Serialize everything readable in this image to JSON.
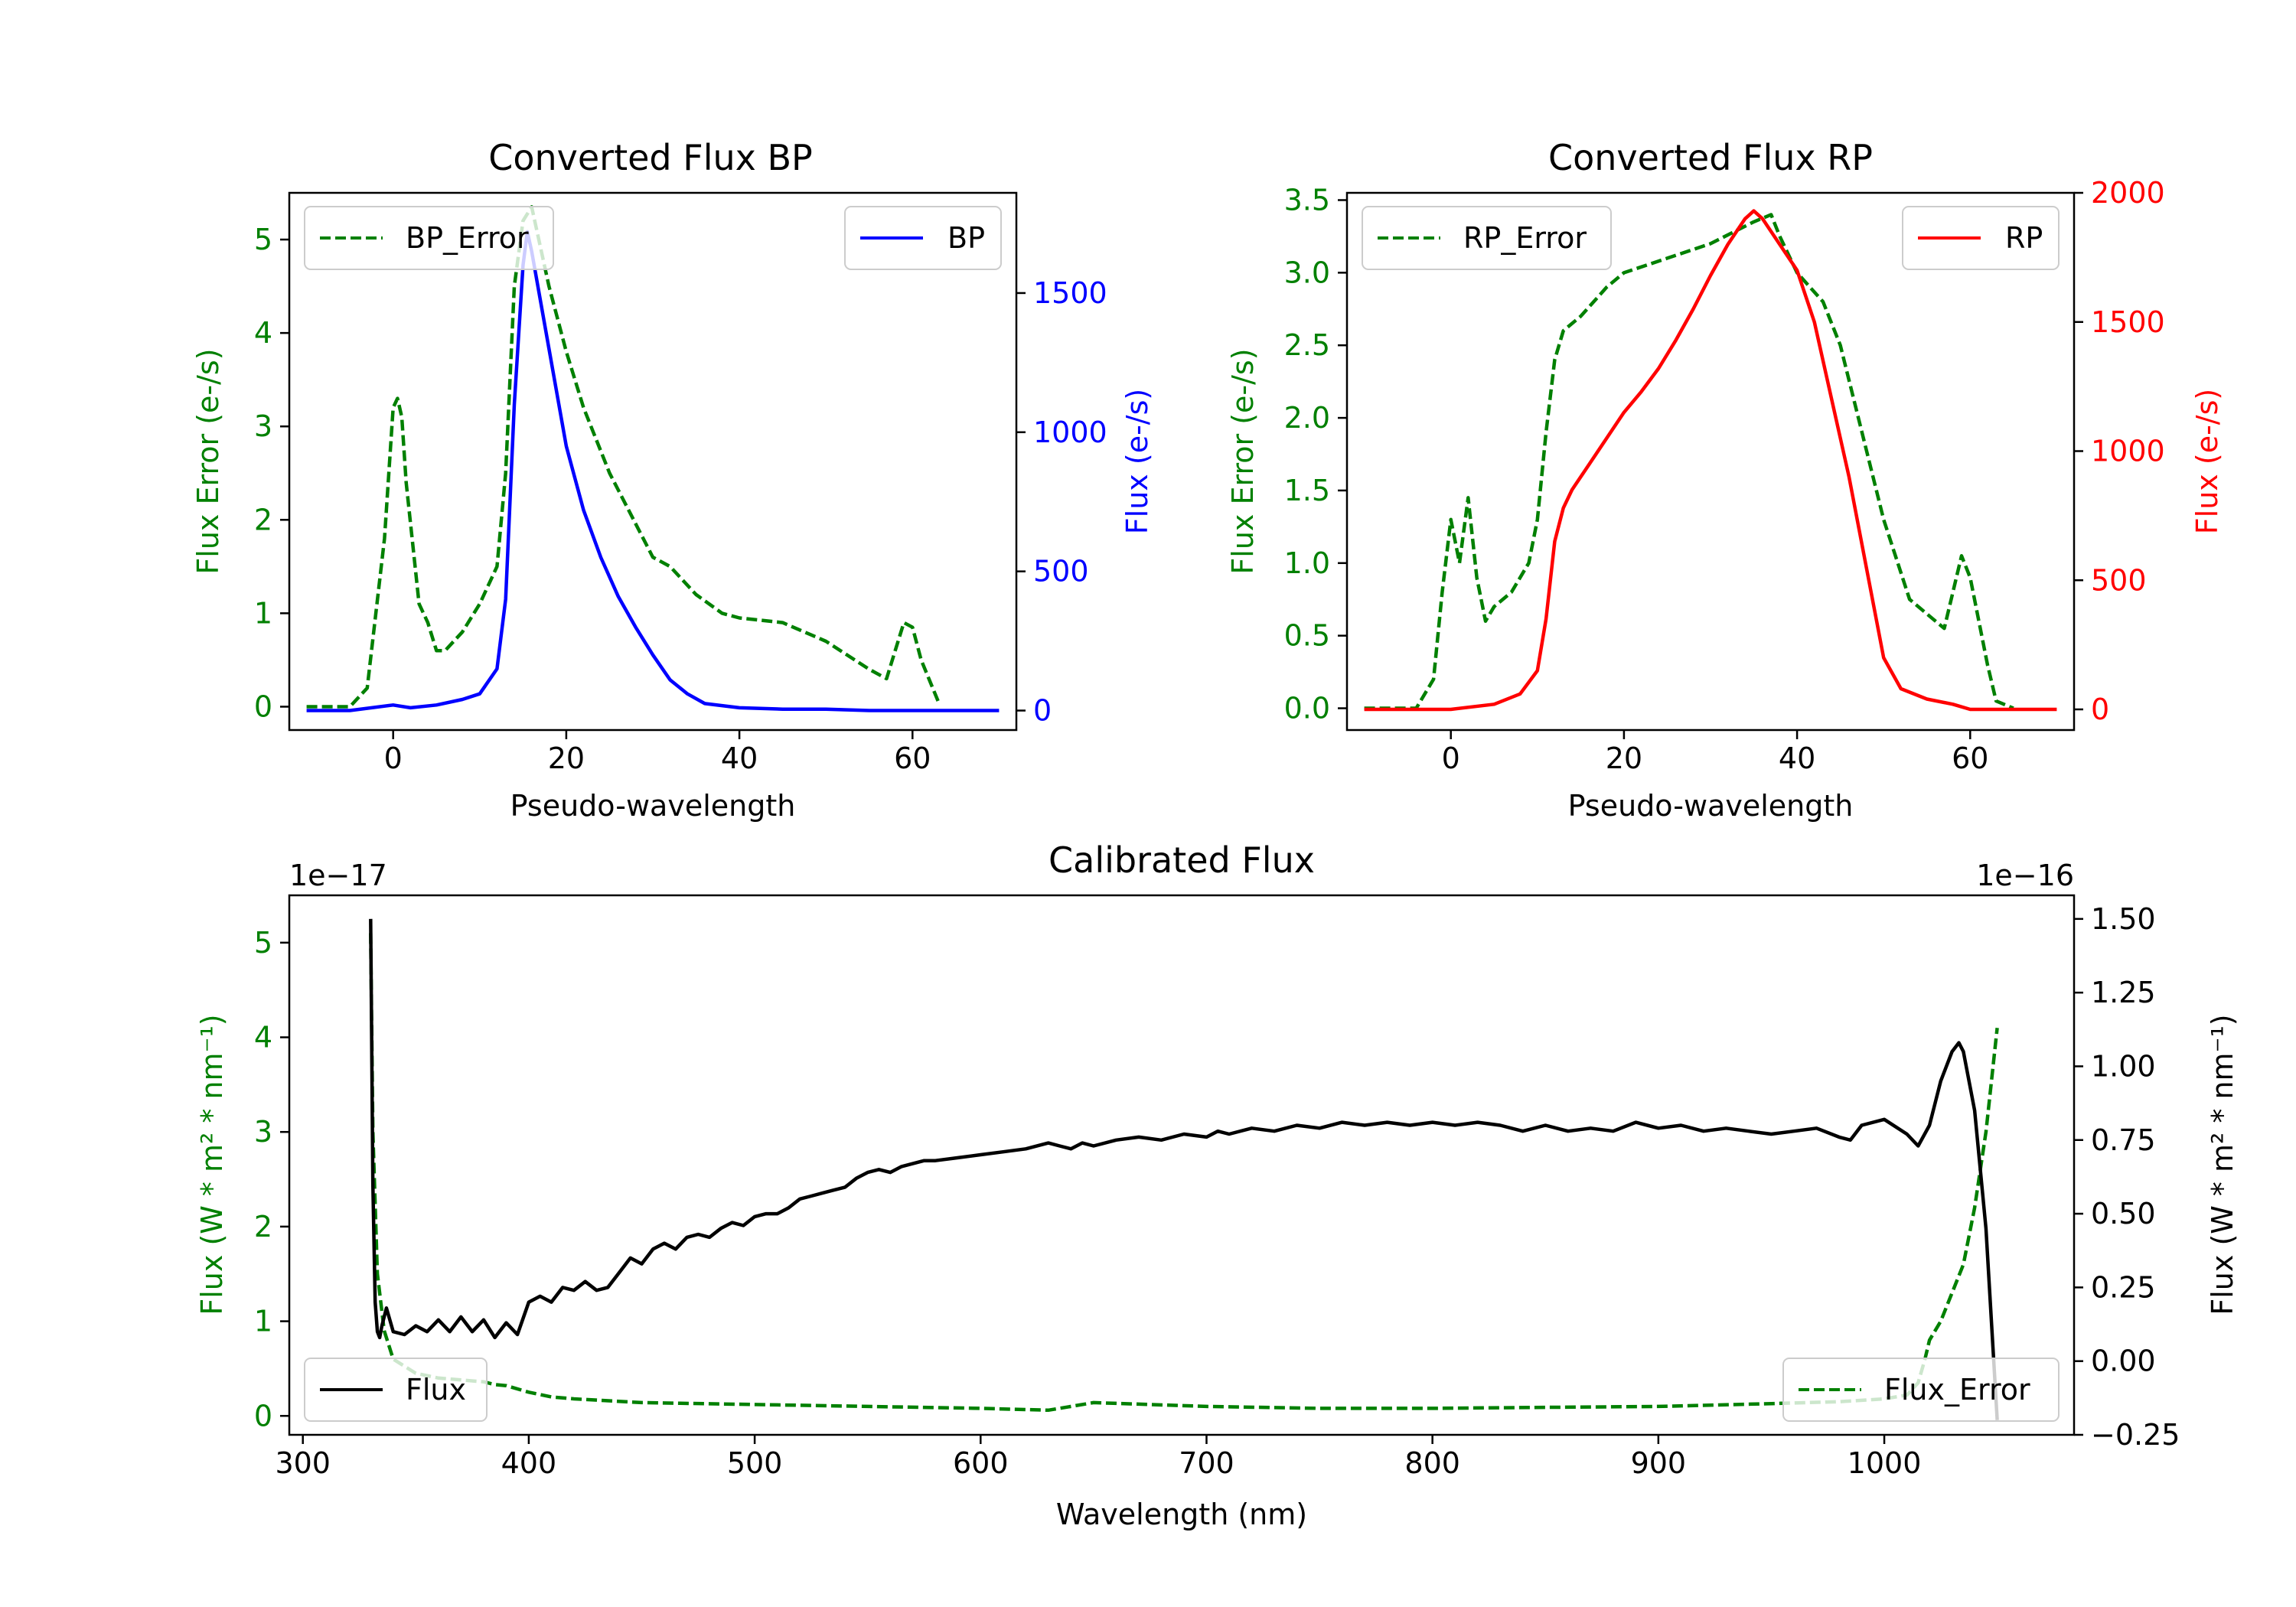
{
  "chart_data": [
    {
      "id": "bp",
      "type": "line",
      "title": "Converted Flux BP",
      "xlabel": "Pseudo-wavelength",
      "ylabel_left": "Flux Error (e-/s)",
      "ylabel_right": "Flux (e-/s)",
      "xlim": [
        -12,
        72
      ],
      "ylim_left": [
        -0.25,
        5.5
      ],
      "ylim_right": [
        -70,
        1860
      ],
      "xticks": [
        0,
        20,
        40,
        60
      ],
      "yticks_left": [
        0,
        1,
        2,
        3,
        4,
        5
      ],
      "yticks_right": [
        0,
        500,
        1000,
        1500
      ],
      "legend_left": "top-left",
      "legend_right": "top-right",
      "series": [
        {
          "name": "BP_Error",
          "axis": "left",
          "color": "#008000",
          "style": "dashed",
          "x": [
            -10,
            -5,
            -3,
            -1,
            0,
            0.5,
            1,
            1.5,
            3,
            4,
            5,
            6,
            8,
            10,
            12,
            13,
            14,
            15,
            16,
            18,
            20,
            22,
            25,
            30,
            32,
            35,
            38,
            40,
            45,
            50,
            55,
            57,
            58,
            59,
            60,
            61,
            63
          ],
          "y": [
            0,
            0,
            0.2,
            1.8,
            3.2,
            3.3,
            3.1,
            2.4,
            1.1,
            0.9,
            0.6,
            0.6,
            0.8,
            1.1,
            1.5,
            2.5,
            4.5,
            5.2,
            5.35,
            4.5,
            3.8,
            3.2,
            2.5,
            1.6,
            1.5,
            1.2,
            1.0,
            0.95,
            0.9,
            0.7,
            0.4,
            0.3,
            0.6,
            0.9,
            0.85,
            0.5,
            0.05
          ]
        },
        {
          "name": "BP",
          "axis": "right",
          "color": "#0000ff",
          "style": "solid",
          "x": [
            -10,
            -5,
            0,
            2,
            5,
            8,
            10,
            12,
            13,
            14,
            15,
            15.5,
            16,
            18,
            20,
            22,
            24,
            26,
            28,
            30,
            32,
            34,
            36,
            40,
            45,
            50,
            55,
            60,
            65,
            70
          ],
          "y": [
            0,
            0,
            20,
            10,
            20,
            40,
            60,
            150,
            400,
            1100,
            1600,
            1720,
            1650,
            1300,
            950,
            720,
            550,
            410,
            300,
            200,
            110,
            60,
            25,
            10,
            5,
            5,
            0,
            0,
            0,
            0
          ]
        }
      ]
    },
    {
      "id": "rp",
      "type": "line",
      "title": "Converted Flux RP",
      "xlabel": "Pseudo-wavelength",
      "ylabel_left": "Flux Error (e-/s)",
      "ylabel_right": "Flux (e-/s)",
      "xlim": [
        -12,
        72
      ],
      "ylim_left": [
        -0.15,
        3.55
      ],
      "ylim_right": [
        -80,
        2000
      ],
      "xticks": [
        0,
        20,
        40,
        60
      ],
      "yticks_left": [
        0.0,
        0.5,
        1.0,
        1.5,
        2.0,
        2.5,
        3.0,
        3.5
      ],
      "yticks_right": [
        0,
        500,
        1000,
        1500,
        2000
      ],
      "legend_left": "top-left",
      "legend_right": "top-right",
      "series": [
        {
          "name": "RP_Error",
          "axis": "left",
          "color": "#008000",
          "style": "dashed",
          "x": [
            -10,
            -4,
            -2,
            -1,
            0,
            1,
            2,
            3,
            4,
            5,
            7,
            9,
            10,
            11,
            12,
            13,
            15,
            18,
            20,
            25,
            30,
            35,
            37,
            38,
            40,
            43,
            45,
            50,
            53,
            56,
            57,
            58,
            59,
            60,
            62,
            63,
            65
          ],
          "y": [
            0,
            0,
            0.2,
            0.8,
            1.3,
            1.0,
            1.45,
            0.9,
            0.6,
            0.7,
            0.8,
            1.0,
            1.3,
            1.9,
            2.4,
            2.6,
            2.7,
            2.9,
            3.0,
            3.1,
            3.2,
            3.35,
            3.4,
            3.25,
            3.0,
            2.8,
            2.5,
            1.3,
            0.75,
            0.6,
            0.55,
            0.8,
            1.05,
            0.9,
            0.3,
            0.05,
            0
          ]
        },
        {
          "name": "RP",
          "axis": "right",
          "color": "#ff0000",
          "style": "solid",
          "x": [
            -10,
            0,
            5,
            8,
            10,
            11,
            12,
            13,
            14,
            16,
            18,
            20,
            22,
            24,
            26,
            28,
            30,
            32,
            34,
            35,
            36,
            38,
            40,
            42,
            44,
            46,
            48,
            50,
            52,
            55,
            58,
            60,
            65,
            70
          ],
          "y": [
            0,
            0,
            20,
            60,
            150,
            350,
            650,
            780,
            850,
            950,
            1050,
            1150,
            1230,
            1320,
            1430,
            1550,
            1680,
            1800,
            1900,
            1930,
            1900,
            1800,
            1700,
            1500,
            1200,
            900,
            550,
            200,
            80,
            40,
            20,
            0,
            0,
            0
          ]
        }
      ]
    },
    {
      "id": "cal",
      "type": "line",
      "title": "Calibrated Flux",
      "xlabel": "Wavelength (nm)",
      "ylabel_left": "Flux (W * m² * nm⁻¹)",
      "ylabel_right": "Flux (W * m² * nm⁻¹)",
      "offset_left": "1e−17",
      "offset_right": "1e−16",
      "xlim": [
        294,
        1084
      ],
      "ylim_left": [
        -0.2,
        5.5
      ],
      "ylim_right": [
        -0.25,
        1.58
      ],
      "xticks": [
        300,
        400,
        500,
        600,
        700,
        800,
        900,
        1000
      ],
      "yticks_left": [
        0,
        1,
        2,
        3,
        4,
        5
      ],
      "yticks_right": [
        -0.25,
        0.0,
        0.25,
        0.5,
        0.75,
        1.0,
        1.25,
        1.5
      ],
      "yticklabels_right": [
        "−0.25",
        "0.00",
        "0.25",
        "0.50",
        "0.75",
        "1.00",
        "1.25",
        "1.50"
      ],
      "legend_left": "bottom-left",
      "legend_right": "bottom-right",
      "series": [
        {
          "name": "Flux",
          "axis": "right",
          "color": "#000000",
          "style": "solid",
          "x": [
            330,
            331,
            332,
            333,
            334,
            335,
            337,
            340,
            345,
            350,
            355,
            360,
            365,
            370,
            375,
            380,
            385,
            390,
            395,
            400,
            405,
            410,
            415,
            420,
            425,
            430,
            435,
            440,
            445,
            450,
            455,
            460,
            465,
            470,
            475,
            480,
            485,
            490,
            495,
            500,
            505,
            510,
            515,
            520,
            525,
            530,
            535,
            540,
            545,
            550,
            555,
            560,
            565,
            570,
            575,
            580,
            590,
            600,
            610,
            620,
            630,
            635,
            640,
            645,
            650,
            660,
            670,
            680,
            690,
            700,
            705,
            710,
            720,
            730,
            740,
            750,
            760,
            770,
            780,
            790,
            800,
            810,
            820,
            830,
            840,
            850,
            860,
            870,
            880,
            890,
            900,
            910,
            920,
            930,
            940,
            950,
            960,
            970,
            980,
            985,
            990,
            1000,
            1010,
            1015,
            1020,
            1025,
            1030,
            1033,
            1035,
            1040,
            1045,
            1050
          ],
          "y": [
            1.5,
            0.6,
            0.2,
            0.1,
            0.08,
            0.12,
            0.18,
            0.1,
            0.09,
            0.12,
            0.1,
            0.14,
            0.1,
            0.15,
            0.1,
            0.14,
            0.08,
            0.13,
            0.09,
            0.2,
            0.22,
            0.2,
            0.25,
            0.24,
            0.27,
            0.24,
            0.25,
            0.3,
            0.35,
            0.33,
            0.38,
            0.4,
            0.38,
            0.42,
            0.43,
            0.42,
            0.45,
            0.47,
            0.46,
            0.49,
            0.5,
            0.5,
            0.52,
            0.55,
            0.56,
            0.57,
            0.58,
            0.59,
            0.62,
            0.64,
            0.65,
            0.64,
            0.66,
            0.67,
            0.68,
            0.68,
            0.69,
            0.7,
            0.71,
            0.72,
            0.74,
            0.73,
            0.72,
            0.74,
            0.73,
            0.75,
            0.76,
            0.75,
            0.77,
            0.76,
            0.78,
            0.77,
            0.79,
            0.78,
            0.8,
            0.79,
            0.81,
            0.8,
            0.81,
            0.8,
            0.81,
            0.8,
            0.81,
            0.8,
            0.78,
            0.8,
            0.78,
            0.79,
            0.78,
            0.81,
            0.79,
            0.8,
            0.78,
            0.79,
            0.78,
            0.77,
            0.78,
            0.79,
            0.76,
            0.75,
            0.8,
            0.82,
            0.77,
            0.73,
            0.8,
            0.95,
            1.05,
            1.08,
            1.05,
            0.85,
            0.45,
            -0.2
          ]
        },
        {
          "name": "Flux_Error",
          "axis": "left",
          "color": "#008000",
          "style": "dashed",
          "x": [
            330,
            331,
            333,
            336,
            340,
            350,
            360,
            370,
            380,
            385,
            390,
            400,
            410,
            420,
            450,
            500,
            550,
            600,
            630,
            640,
            650,
            700,
            750,
            800,
            850,
            900,
            950,
            980,
            1000,
            1010,
            1015,
            1018,
            1020,
            1025,
            1030,
            1035,
            1040,
            1045,
            1050
          ],
          "y": [
            5.1,
            3.0,
            1.5,
            0.9,
            0.6,
            0.45,
            0.4,
            0.38,
            0.36,
            0.33,
            0.32,
            0.25,
            0.2,
            0.18,
            0.14,
            0.12,
            0.1,
            0.08,
            0.06,
            0.1,
            0.14,
            0.1,
            0.08,
            0.08,
            0.09,
            0.1,
            0.13,
            0.15,
            0.18,
            0.22,
            0.35,
            0.6,
            0.8,
            1.0,
            1.3,
            1.6,
            2.2,
            3.0,
            4.1
          ]
        }
      ]
    }
  ]
}
